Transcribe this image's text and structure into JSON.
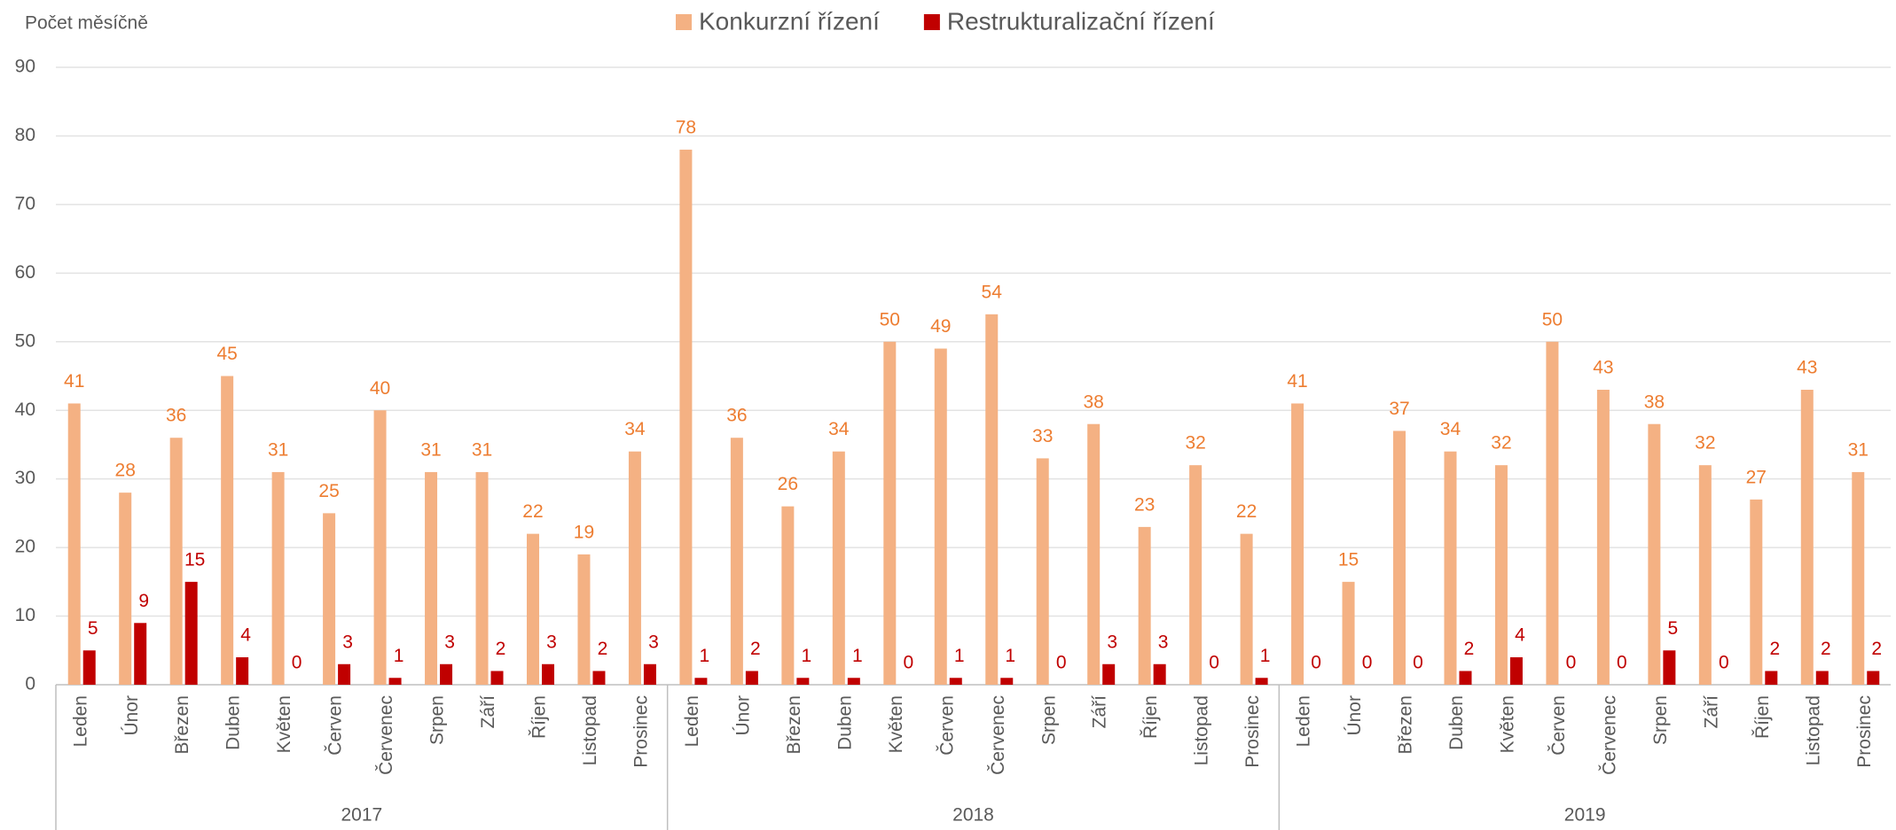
{
  "chart_data": {
    "type": "bar",
    "y_label": "Počet měsíčně",
    "categories": [
      "Leden",
      "Únor",
      "Březen",
      "Duben",
      "Květen",
      "Červen",
      "Červenec",
      "Srpen",
      "Září",
      "Říjen",
      "Listopad",
      "Prosinec",
      "Leden",
      "Únor",
      "Březen",
      "Duben",
      "Květen",
      "Červen",
      "Červenec",
      "Srpen",
      "Září",
      "Říjen",
      "Listopad",
      "Prosinec",
      "Leden",
      "Únor",
      "Březen",
      "Duben",
      "Květen",
      "Červen",
      "Červenec",
      "Srpen",
      "Září",
      "Říjen",
      "Listopad",
      "Prosinec"
    ],
    "years": [
      "2017",
      "2018",
      "2019"
    ],
    "series": [
      {
        "name": "Konkurzní řízení",
        "color": "#f4b183",
        "label_color": "#ed7d31",
        "values": [
          41,
          28,
          36,
          45,
          31,
          25,
          40,
          31,
          31,
          22,
          19,
          34,
          78,
          36,
          26,
          34,
          50,
          49,
          54,
          33,
          38,
          23,
          32,
          22,
          41,
          15,
          37,
          34,
          32,
          50,
          43,
          38,
          32,
          27,
          43,
          31
        ]
      },
      {
        "name": "Restrukturalizační řízení",
        "color": "#c00000",
        "label_color": "#c00000",
        "values": [
          5,
          9,
          15,
          4,
          0,
          3,
          1,
          3,
          2,
          3,
          2,
          3,
          1,
          2,
          1,
          1,
          0,
          1,
          1,
          0,
          3,
          3,
          0,
          1,
          0,
          0,
          0,
          2,
          4,
          0,
          0,
          5,
          0,
          2,
          2,
          2
        ]
      }
    ],
    "ylim": [
      0,
      90
    ],
    "yticks": [
      0,
      10,
      20,
      30,
      40,
      50,
      60,
      70,
      80,
      90
    ],
    "grid": true,
    "legend": "top"
  }
}
